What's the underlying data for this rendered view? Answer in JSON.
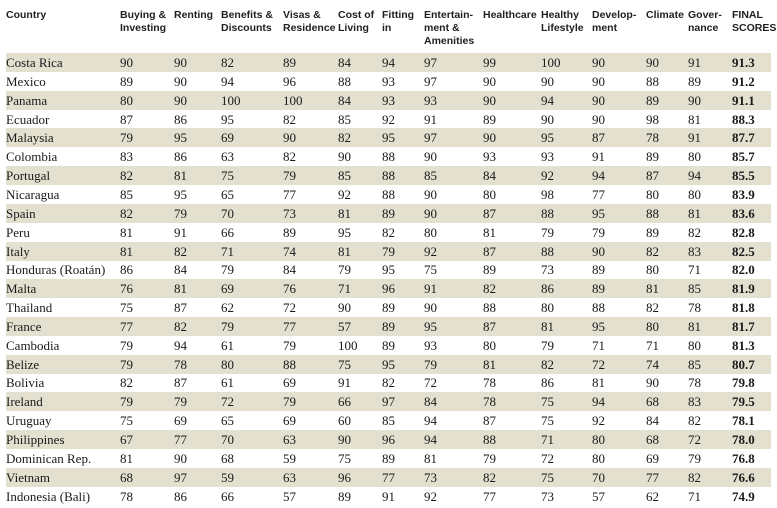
{
  "headers": [
    "Country",
    "Buying &\nInvesting",
    "Renting",
    "Benefits &\nDiscounts",
    "Visas &\nResidence",
    "Cost of\nLiving",
    "Fitting\nin",
    "Entertain-ment &\nAmenities",
    "Healthcare",
    "Healthy\nLifestyle",
    "Develop-ment",
    "Climate",
    "Gover-nance",
    "FINAL\nSCORES"
  ],
  "rows": [
    [
      "Costa Rica",
      "90",
      "90",
      "82",
      "89",
      "84",
      "94",
      "97",
      "99",
      "100",
      "90",
      "90",
      "91",
      "91.3"
    ],
    [
      "Mexico",
      "89",
      "90",
      "94",
      "96",
      "88",
      "93",
      "97",
      "90",
      "90",
      "90",
      "88",
      "89",
      "91.2"
    ],
    [
      "Panama",
      "80",
      "90",
      "100",
      "100",
      "84",
      "93",
      "93",
      "90",
      "94",
      "90",
      "89",
      "90",
      "91.1"
    ],
    [
      "Ecuador",
      "87",
      "86",
      "95",
      "82",
      "85",
      "92",
      "91",
      "89",
      "90",
      "90",
      "98",
      "81",
      "88.3"
    ],
    [
      "Malaysia",
      "79",
      "95",
      "69",
      "90",
      "82",
      "95",
      "97",
      "90",
      "95",
      "87",
      "78",
      "91",
      "87.7"
    ],
    [
      "Colombia",
      "83",
      "86",
      "63",
      "82",
      "90",
      "88",
      "90",
      "93",
      "93",
      "91",
      "89",
      "80",
      "85.7"
    ],
    [
      "Portugal",
      "82",
      "81",
      "75",
      "79",
      "85",
      "88",
      "85",
      "84",
      "92",
      "94",
      "87",
      "94",
      "85.5"
    ],
    [
      "Nicaragua",
      "85",
      "95",
      "65",
      "77",
      "92",
      "88",
      "90",
      "80",
      "98",
      "77",
      "80",
      "80",
      "83.9"
    ],
    [
      "Spain",
      "82",
      "79",
      "70",
      "73",
      "81",
      "89",
      "90",
      "87",
      "88",
      "95",
      "88",
      "81",
      "83.6"
    ],
    [
      "Peru",
      "81",
      "91",
      "66",
      "89",
      "95",
      "82",
      "80",
      "81",
      "79",
      "79",
      "89",
      "82",
      "82.8"
    ],
    [
      "Italy",
      "81",
      "82",
      "71",
      "74",
      "81",
      "79",
      "92",
      "87",
      "88",
      "90",
      "82",
      "83",
      "82.5"
    ],
    [
      "Honduras (Roatán)",
      "86",
      "84",
      "79",
      "84",
      "79",
      "95",
      "75",
      "89",
      "73",
      "89",
      "80",
      "71",
      "82.0"
    ],
    [
      "Malta",
      "76",
      "81",
      "69",
      "76",
      "71",
      "96",
      "91",
      "82",
      "86",
      "89",
      "81",
      "85",
      "81.9"
    ],
    [
      "Thailand",
      "75",
      "87",
      "62",
      "72",
      "90",
      "89",
      "90",
      "88",
      "80",
      "88",
      "82",
      "78",
      "81.8"
    ],
    [
      "France",
      "77",
      "82",
      "79",
      "77",
      "57",
      "89",
      "95",
      "87",
      "81",
      "95",
      "80",
      "81",
      "81.7"
    ],
    [
      "Cambodia",
      "79",
      "94",
      "61",
      "79",
      "100",
      "89",
      "93",
      "80",
      "79",
      "71",
      "71",
      "80",
      "81.3"
    ],
    [
      "Belize",
      "79",
      "78",
      "80",
      "88",
      "75",
      "95",
      "79",
      "81",
      "82",
      "72",
      "74",
      "85",
      "80.7"
    ],
    [
      "Bolivia",
      "82",
      "87",
      "61",
      "69",
      "91",
      "82",
      "72",
      "78",
      "86",
      "81",
      "90",
      "78",
      "79.8"
    ],
    [
      "Ireland",
      "79",
      "79",
      "72",
      "79",
      "66",
      "97",
      "84",
      "78",
      "75",
      "94",
      "68",
      "83",
      "79.5"
    ],
    [
      "Uruguay",
      "75",
      "69",
      "65",
      "69",
      "60",
      "85",
      "94",
      "87",
      "75",
      "92",
      "84",
      "82",
      "78.1"
    ],
    [
      "Philippines",
      "67",
      "77",
      "70",
      "63",
      "90",
      "96",
      "94",
      "88",
      "71",
      "80",
      "68",
      "72",
      "78.0"
    ],
    [
      "Dominican Rep.",
      "81",
      "90",
      "68",
      "59",
      "75",
      "89",
      "81",
      "79",
      "72",
      "80",
      "69",
      "79",
      "76.8"
    ],
    [
      "Vietnam",
      "68",
      "97",
      "59",
      "63",
      "96",
      "77",
      "73",
      "82",
      "75",
      "70",
      "77",
      "82",
      "76.6"
    ],
    [
      "Indonesia (Bali)",
      "78",
      "86",
      "66",
      "57",
      "89",
      "91",
      "92",
      "77",
      "73",
      "57",
      "62",
      "71",
      "74.9"
    ]
  ]
}
